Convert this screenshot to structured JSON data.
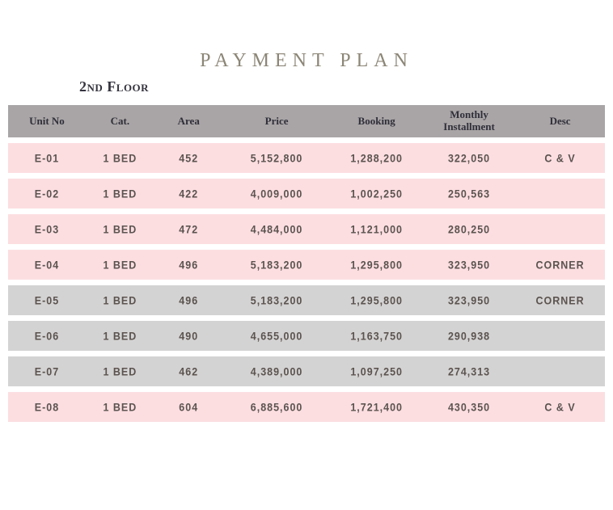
{
  "title": "PAYMENT PLAN",
  "subtitle": "2nd Floor",
  "colors": {
    "title_text": "#8c8677",
    "subtitle_text": "#35343f",
    "header_bg": "#a9a5a6",
    "header_text": "#302f3a",
    "row_pink": "#fcdee1",
    "row_gray": "#d4d3d3",
    "cell_text": "#5b534f"
  },
  "table": {
    "columns": [
      "Unit No",
      "Cat.",
      "Area",
      "Price",
      "Booking",
      "Monthly Installment",
      "Desc"
    ],
    "rows": [
      {
        "unit": "E-01",
        "cat": "1 BED",
        "area": "452",
        "price": "5,152,800",
        "booking": "1,288,200",
        "monthly": "322,050",
        "desc": "C & V",
        "bg": "pink"
      },
      {
        "unit": "E-02",
        "cat": "1 BED",
        "area": "422",
        "price": "4,009,000",
        "booking": "1,002,250",
        "monthly": "250,563",
        "desc": "",
        "bg": "pink"
      },
      {
        "unit": "E-03",
        "cat": "1 BED",
        "area": "472",
        "price": "4,484,000",
        "booking": "1,121,000",
        "monthly": "280,250",
        "desc": "",
        "bg": "pink"
      },
      {
        "unit": "E-04",
        "cat": "1 BED",
        "area": "496",
        "price": "5,183,200",
        "booking": "1,295,800",
        "monthly": "323,950",
        "desc": "CORNER",
        "bg": "pink"
      },
      {
        "unit": "E-05",
        "cat": "1 BED",
        "area": "496",
        "price": "5,183,200",
        "booking": "1,295,800",
        "monthly": "323,950",
        "desc": "CORNER",
        "bg": "gray"
      },
      {
        "unit": "E-06",
        "cat": "1 BED",
        "area": "490",
        "price": "4,655,000",
        "booking": "1,163,750",
        "monthly": "290,938",
        "desc": "",
        "bg": "gray"
      },
      {
        "unit": "E-07",
        "cat": "1 BED",
        "area": "462",
        "price": "4,389,000",
        "booking": "1,097,250",
        "monthly": "274,313",
        "desc": "",
        "bg": "gray"
      },
      {
        "unit": "E-08",
        "cat": "1 BED",
        "area": "604",
        "price": "6,885,600",
        "booking": "1,721,400",
        "monthly": "430,350",
        "desc": "C & V",
        "bg": "pink"
      }
    ]
  }
}
